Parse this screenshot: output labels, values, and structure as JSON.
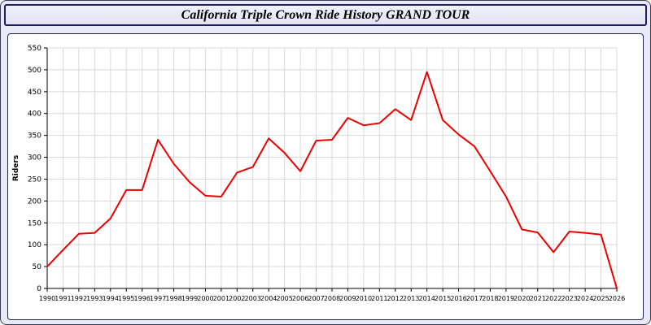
{
  "title": "California Triple Crown Ride History GRAND TOUR",
  "colors": {
    "background": "#e9e9f7",
    "panel_border": "#22226a",
    "title_border": "#1d1d5e",
    "plot_background": "#ffffff",
    "grid": "#d9d9d9",
    "axis": "#000000",
    "line": "#ee0000"
  },
  "chart_data": {
    "type": "line",
    "title": "California Triple Crown Ride History GRAND TOUR",
    "xlabel": "",
    "ylabel": "Riders",
    "ylim": [
      0,
      550
    ],
    "ytick_step": 50,
    "grid": true,
    "legend": "none",
    "x": [
      1990,
      1991,
      1992,
      1993,
      1994,
      1995,
      1996,
      1997,
      1998,
      1999,
      2000,
      2001,
      2002,
      2003,
      2004,
      2005,
      2006,
      2007,
      2008,
      2009,
      2010,
      2011,
      2012,
      2013,
      2014,
      2015,
      2016,
      2017,
      2018,
      2019,
      2020,
      2021,
      2022,
      2023,
      2024,
      2025,
      2026
    ],
    "series": [
      {
        "name": "Riders",
        "color": "#ee0000",
        "values": [
          50,
          88,
          125,
          127,
          160,
          225,
          225,
          340,
          285,
          243,
          212,
          210,
          265,
          278,
          343,
          310,
          268,
          338,
          340,
          390,
          373,
          378,
          410,
          385,
          495,
          385,
          352,
          325,
          268,
          210,
          135,
          128,
          83,
          130,
          127,
          123,
          0
        ]
      }
    ]
  }
}
